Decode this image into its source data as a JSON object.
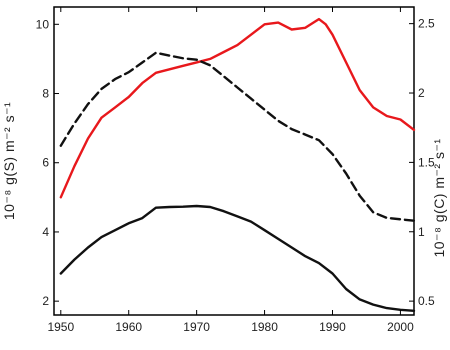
{
  "chart_data": {
    "type": "line",
    "x_range": [
      1949,
      2002
    ],
    "x_ticks": [
      1950,
      1960,
      1970,
      1980,
      1990,
      2000
    ],
    "left_axis": {
      "label": "10⁻⁸ g(S) m⁻² s⁻¹",
      "range": [
        1.6,
        10.5
      ],
      "ticks": [
        2,
        4,
        6,
        8,
        10
      ]
    },
    "right_axis": {
      "label": "10⁻⁸ g(C) m⁻² s⁻¹",
      "range": [
        0.4,
        2.62
      ],
      "ticks": [
        0.5,
        1,
        1.5,
        2,
        2.5
      ],
      "tick_labels": [
        "0.5",
        "1",
        "1.5",
        "2",
        "2.5"
      ]
    },
    "grid": false,
    "series": [
      {
        "axis": "left",
        "color": "#e8181c",
        "style": "solid",
        "points": [
          [
            1950,
            5.0
          ],
          [
            1952,
            5.9
          ],
          [
            1954,
            6.7
          ],
          [
            1956,
            7.3
          ],
          [
            1958,
            7.6
          ],
          [
            1960,
            7.9
          ],
          [
            1962,
            8.3
          ],
          [
            1964,
            8.6
          ],
          [
            1966,
            8.7
          ],
          [
            1968,
            8.8
          ],
          [
            1970,
            8.9
          ],
          [
            1972,
            9.0
          ],
          [
            1974,
            9.2
          ],
          [
            1976,
            9.4
          ],
          [
            1978,
            9.7
          ],
          [
            1980,
            10.0
          ],
          [
            1982,
            10.05
          ],
          [
            1984,
            9.85
          ],
          [
            1986,
            9.9
          ],
          [
            1988,
            10.15
          ],
          [
            1989,
            10.0
          ],
          [
            1990,
            9.7
          ],
          [
            1992,
            8.9
          ],
          [
            1994,
            8.1
          ],
          [
            1996,
            7.6
          ],
          [
            1998,
            7.35
          ],
          [
            2000,
            7.25
          ],
          [
            2002,
            6.95
          ]
        ]
      },
      {
        "axis": "right",
        "color": "#111111",
        "style": "dashed",
        "points": [
          [
            1950,
            1.62
          ],
          [
            1952,
            1.78
          ],
          [
            1954,
            1.92
          ],
          [
            1956,
            2.03
          ],
          [
            1958,
            2.1
          ],
          [
            1960,
            2.15
          ],
          [
            1962,
            2.22
          ],
          [
            1964,
            2.29
          ],
          [
            1966,
            2.27
          ],
          [
            1968,
            2.25
          ],
          [
            1970,
            2.24
          ],
          [
            1972,
            2.2
          ],
          [
            1974,
            2.12
          ],
          [
            1976,
            2.04
          ],
          [
            1978,
            1.96
          ],
          [
            1980,
            1.88
          ],
          [
            1982,
            1.8
          ],
          [
            1984,
            1.74
          ],
          [
            1986,
            1.7
          ],
          [
            1988,
            1.66
          ],
          [
            1990,
            1.56
          ],
          [
            1992,
            1.42
          ],
          [
            1994,
            1.26
          ],
          [
            1996,
            1.14
          ],
          [
            1998,
            1.1
          ],
          [
            2000,
            1.09
          ],
          [
            2002,
            1.08
          ]
        ]
      },
      {
        "axis": "left",
        "color": "#111111",
        "style": "solid",
        "points": [
          [
            1950,
            2.8
          ],
          [
            1952,
            3.2
          ],
          [
            1954,
            3.55
          ],
          [
            1956,
            3.85
          ],
          [
            1958,
            4.05
          ],
          [
            1960,
            4.25
          ],
          [
            1962,
            4.4
          ],
          [
            1964,
            4.7
          ],
          [
            1966,
            4.72
          ],
          [
            1968,
            4.73
          ],
          [
            1970,
            4.75
          ],
          [
            1972,
            4.72
          ],
          [
            1974,
            4.6
          ],
          [
            1976,
            4.45
          ],
          [
            1978,
            4.3
          ],
          [
            1980,
            4.05
          ],
          [
            1982,
            3.8
          ],
          [
            1984,
            3.55
          ],
          [
            1986,
            3.3
          ],
          [
            1988,
            3.1
          ],
          [
            1990,
            2.8
          ],
          [
            1992,
            2.35
          ],
          [
            1994,
            2.05
          ],
          [
            1996,
            1.9
          ],
          [
            1998,
            1.8
          ],
          [
            2000,
            1.75
          ],
          [
            2002,
            1.72
          ]
        ]
      }
    ]
  }
}
